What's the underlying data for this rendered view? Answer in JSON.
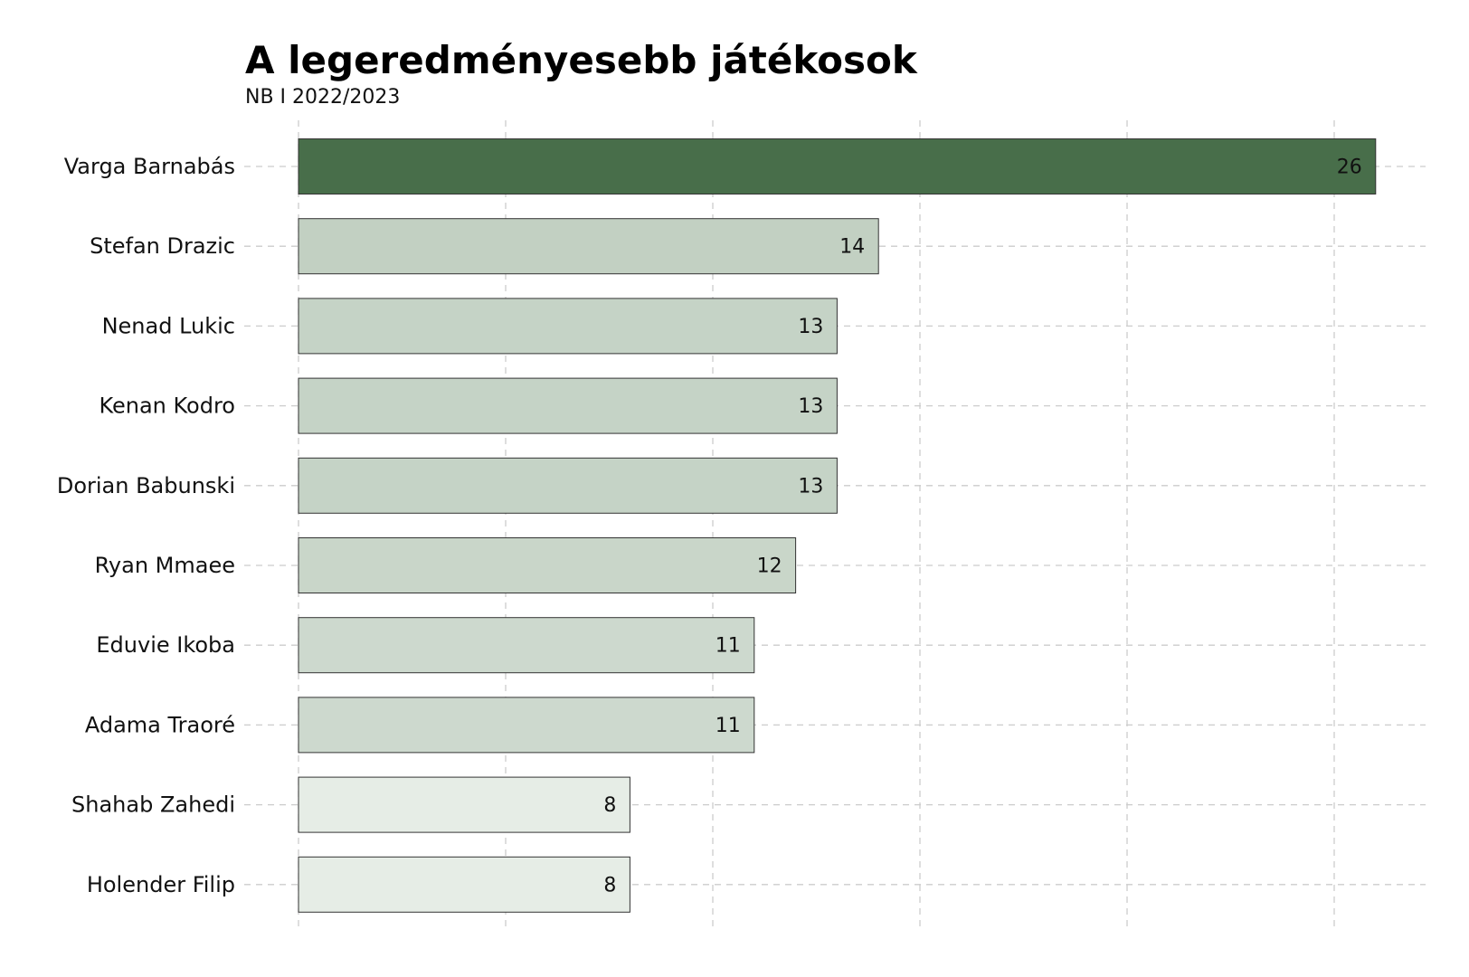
{
  "chart_data": {
    "type": "bar",
    "orientation": "horizontal",
    "title": "A legeredményesebb játékosok",
    "subtitle": "NB I 2022/2023",
    "categories": [
      "Varga Barnabás",
      "Stefan Drazic",
      "Nenad Lukic",
      "Kenan Kodro",
      "Dorian Babunski",
      "Ryan Mmaee",
      "Eduvie Ikoba",
      "Adama Traoré",
      "Shahab Zahedi",
      "Holender Filip"
    ],
    "values": [
      26,
      14,
      13,
      13,
      13,
      12,
      11,
      11,
      8,
      8
    ],
    "xlim": [
      0,
      27
    ],
    "x_gridlines": [
      0,
      5,
      10,
      15,
      20,
      25
    ],
    "grid": "dashed",
    "data_labels": "inside-end",
    "colors": {
      "low": "#e6ede6",
      "high": "#486e4a",
      "bar_border": "#333333",
      "grid": "#cccccc"
    }
  }
}
